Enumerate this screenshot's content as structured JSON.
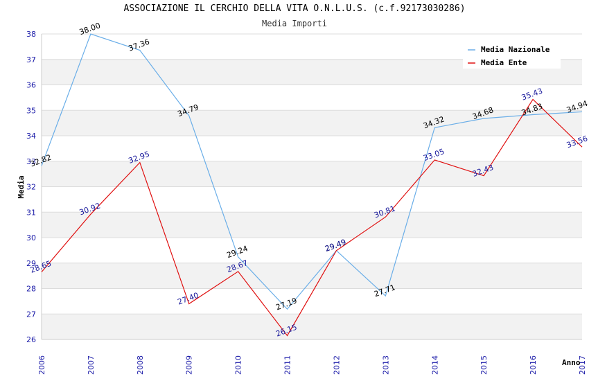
{
  "chart_data": {
    "type": "line",
    "title": "ASSOCIAZIONE IL CERCHIO DELLA VITA O.N.L.U.S. (c.f.92173030286)",
    "subtitle": "Media Importi",
    "xlabel": "Anno",
    "ylabel": "Media",
    "ylim": [
      26,
      38
    ],
    "yticks": [
      "26",
      "27",
      "28",
      "29",
      "30",
      "31",
      "32",
      "33",
      "34",
      "35",
      "36",
      "37",
      "38"
    ],
    "categories": [
      "2006",
      "2007",
      "2008",
      "2009",
      "2010",
      "2011",
      "2012",
      "2013",
      "2014",
      "2015",
      "2016",
      "2017"
    ],
    "series": [
      {
        "name": "Media Nazionale",
        "color": "#6aaee8",
        "values": [
          32.82,
          38.0,
          37.36,
          34.79,
          29.24,
          27.19,
          29.49,
          27.71,
          34.32,
          34.68,
          34.83,
          34.94
        ],
        "labels": [
          "32.82",
          "38.00",
          "37.36",
          "34.79",
          "29.24",
          "27.19",
          "29.49",
          "27.71",
          "34.32",
          "34.68",
          "34.83",
          "34.94"
        ]
      },
      {
        "name": "Media Ente",
        "color": "#e01010",
        "values": [
          28.65,
          30.92,
          32.95,
          27.4,
          28.67,
          26.15,
          29.49,
          30.81,
          33.05,
          32.43,
          35.43,
          33.56
        ],
        "labels": [
          "28.65",
          "30.92",
          "32.95",
          "27.40",
          "28.67",
          "26.15",
          "29.49",
          "30.81",
          "33.05",
          "32.43",
          "35.43",
          "33.56"
        ]
      }
    ],
    "legend": "top-right",
    "grid": true
  }
}
